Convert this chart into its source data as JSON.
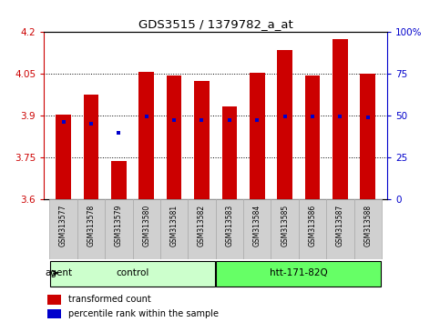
{
  "title": "GDS3515 / 1379782_a_at",
  "samples": [
    "GSM313577",
    "GSM313578",
    "GSM313579",
    "GSM313580",
    "GSM313581",
    "GSM313582",
    "GSM313583",
    "GSM313584",
    "GSM313585",
    "GSM313586",
    "GSM313587",
    "GSM313588"
  ],
  "red_values": [
    3.905,
    3.975,
    3.738,
    4.058,
    4.045,
    4.025,
    3.935,
    4.055,
    4.135,
    4.045,
    4.175,
    4.05
  ],
  "blue_values": [
    3.878,
    3.872,
    3.84,
    3.898,
    3.886,
    3.885,
    3.884,
    3.884,
    3.898,
    3.898,
    3.898,
    3.896
  ],
  "ylim_left": [
    3.6,
    4.2
  ],
  "yticks_left": [
    3.6,
    3.75,
    3.9,
    4.05,
    4.2
  ],
  "yticks_right": [
    0,
    25,
    50,
    75,
    100
  ],
  "groups": [
    {
      "label": "control",
      "start": 0,
      "end": 5,
      "color": "#ccffcc"
    },
    {
      "label": "htt-171-82Q",
      "start": 6,
      "end": 11,
      "color": "#66ff66"
    }
  ],
  "bar_color": "#cc0000",
  "dot_color": "#0000cc",
  "bar_width": 0.55,
  "base": 3.6,
  "background_color": "#ffffff",
  "tick_area_color": "#d0d0d0",
  "agent_label": "agent",
  "legend_items": [
    {
      "color": "#cc0000",
      "label": "transformed count"
    },
    {
      "color": "#0000cc",
      "label": "percentile rank within the sample"
    }
  ]
}
